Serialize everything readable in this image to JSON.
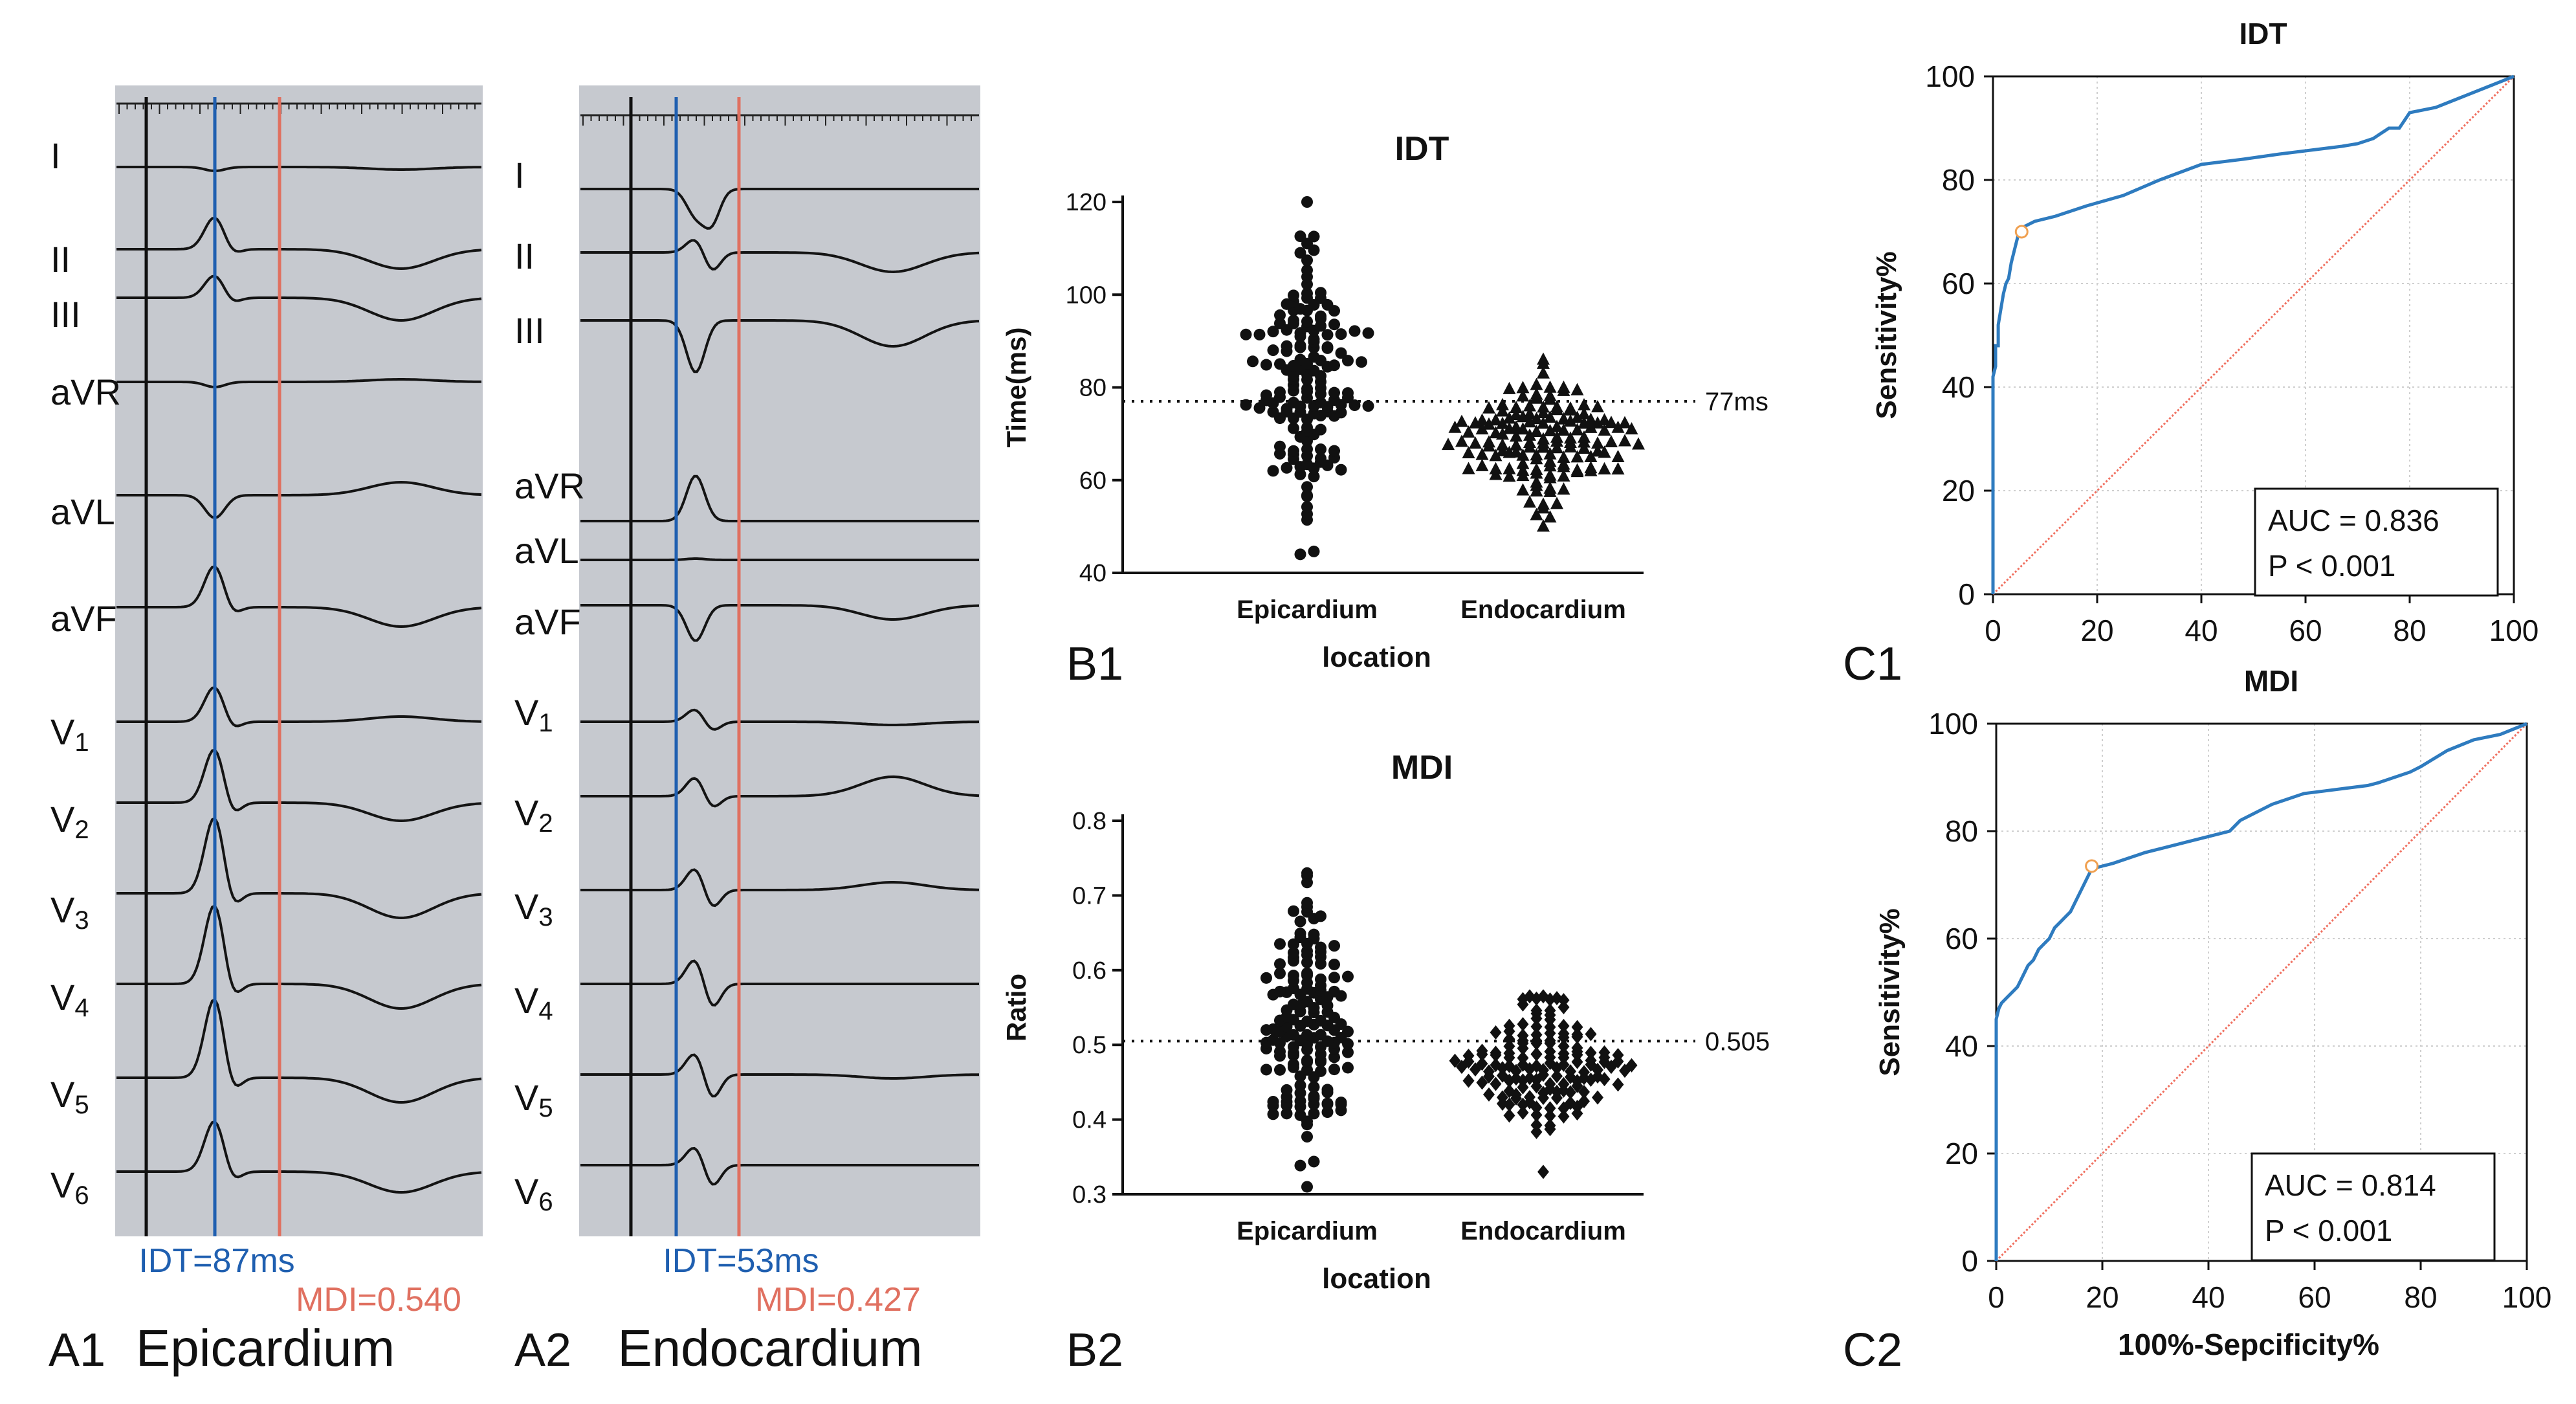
{
  "colors": {
    "ecg_bg": "#c6c9cf",
    "ecg_trace": "#141414",
    "idt_line": "#1f5fb0",
    "mdi_line": "#e07060",
    "roc_curve": "#2e7bbf",
    "roc_diag": "#f07060",
    "cutoff_marker": "#f0a050"
  },
  "panels": {
    "a1": {
      "letter": "A1",
      "site": "Epicardium",
      "idt_label": "IDT=87ms",
      "mdi_label": "MDI=0.540",
      "leads": [
        "I",
        "II",
        "III",
        "aVR",
        "aVL",
        "aVF",
        "V1",
        "V2",
        "V3",
        "V4",
        "V5",
        "V6"
      ]
    },
    "a2": {
      "letter": "A2",
      "site": "Endocardium",
      "idt_label": "IDT=53ms",
      "mdi_label": "MDI=0.427",
      "leads": [
        "I",
        "II",
        "III",
        "aVR",
        "aVL",
        "aVF",
        "V1",
        "V2",
        "V3",
        "V4",
        "V5",
        "V6"
      ]
    },
    "b1": {
      "letter": "B1"
    },
    "b2": {
      "letter": "B2"
    },
    "c1": {
      "letter": "C1"
    },
    "c2": {
      "letter": "C2"
    }
  },
  "chart_data": [
    {
      "id": "b1",
      "type": "scatter",
      "title": "IDT",
      "xlabel": "location",
      "ylabel": "Time(ms)",
      "categories": [
        "Epicardium",
        "Endocardium"
      ],
      "ylim": [
        40,
        120
      ],
      "yticks": [
        40,
        60,
        80,
        100,
        120
      ],
      "reference_line": {
        "value": 77,
        "label": "77ms"
      },
      "series": [
        {
          "name": "Epicardium",
          "marker": "circle",
          "n": 150,
          "min": 44,
          "max": 120,
          "median": 81
        },
        {
          "name": "Endocardium",
          "marker": "triangle",
          "n": 150,
          "min": 50,
          "max": 86,
          "median": 69
        }
      ]
    },
    {
      "id": "b2",
      "type": "scatter",
      "title": "MDI",
      "xlabel": "location",
      "ylabel": "Ratio",
      "categories": [
        "Epicardium",
        "Endocardium"
      ],
      "ylim": [
        0.3,
        0.8
      ],
      "yticks": [
        0.3,
        0.4,
        0.5,
        0.6,
        0.7,
        0.8
      ],
      "reference_line": {
        "value": 0.505,
        "label": "0.505"
      },
      "series": [
        {
          "name": "Epicardium",
          "marker": "circle",
          "n": 150,
          "min": 0.31,
          "max": 0.73,
          "median": 0.53
        },
        {
          "name": "Endocardium",
          "marker": "diamond",
          "n": 150,
          "min": 0.33,
          "max": 0.565,
          "median": 0.47
        }
      ]
    },
    {
      "id": "c1",
      "type": "line",
      "title": "IDT",
      "xlabel": "",
      "ylabel": "Sensitivity%",
      "xlim": [
        0,
        100
      ],
      "ylim": [
        0,
        100
      ],
      "xticks": [
        0,
        20,
        40,
        60,
        80,
        100
      ],
      "yticks": [
        0,
        20,
        40,
        60,
        80,
        100
      ],
      "x": [
        0,
        0,
        0.5,
        0.5,
        1,
        1,
        1.5,
        2,
        2.5,
        3,
        3.5,
        4,
        4.5,
        5,
        6,
        8,
        12,
        18,
        25,
        32,
        40,
        48,
        55,
        63,
        67,
        70,
        73,
        76,
        78,
        80,
        85,
        90,
        95,
        100
      ],
      "y": [
        0,
        42,
        44,
        48,
        48,
        52,
        55,
        58,
        60,
        61,
        64,
        66,
        68,
        70,
        71,
        72,
        73,
        75,
        77,
        80,
        83,
        84,
        85,
        86,
        86.5,
        87,
        88,
        90,
        90,
        93,
        94,
        96,
        98,
        100
      ],
      "reference": {
        "x": [
          0,
          100
        ],
        "y": [
          0,
          100
        ]
      },
      "cutoff": {
        "x": 5.5,
        "y": 70
      },
      "auc_text": "AUC = 0.836",
      "p_text": "P < 0.001"
    },
    {
      "id": "c2",
      "type": "line",
      "title": "MDI",
      "xlabel": "100%-Sepcificity%",
      "ylabel": "Sensitivity%",
      "xlim": [
        0,
        100
      ],
      "ylim": [
        0,
        100
      ],
      "xticks": [
        0,
        20,
        40,
        60,
        80,
        100
      ],
      "yticks": [
        0,
        20,
        40,
        60,
        80,
        100
      ],
      "x": [
        0,
        0,
        0.5,
        1,
        2,
        3,
        4,
        5,
        6,
        7,
        8,
        9,
        10,
        11,
        12,
        13,
        14,
        15,
        16,
        17,
        18,
        20,
        22,
        25,
        28,
        32,
        36,
        40,
        42,
        44,
        46,
        48,
        50,
        52,
        55,
        58,
        62,
        66,
        70,
        72,
        75,
        78,
        80,
        85,
        90,
        95,
        100
      ],
      "y": [
        0,
        45,
        47,
        48,
        49,
        50,
        51,
        53,
        55,
        56,
        58,
        59,
        60,
        62,
        63,
        64,
        65,
        67,
        69,
        71,
        73,
        73.5,
        74,
        75,
        76,
        77,
        78,
        79,
        79.5,
        80,
        82,
        83,
        84,
        85,
        86,
        87,
        87.5,
        88,
        88.5,
        89,
        90,
        91,
        92,
        95,
        97,
        98,
        100
      ],
      "reference": {
        "x": [
          0,
          100
        ],
        "y": [
          0,
          100
        ]
      },
      "cutoff": {
        "x": 18,
        "y": 73.5
      },
      "auc_text": "AUC = 0.814",
      "p_text": "P < 0.001"
    }
  ]
}
